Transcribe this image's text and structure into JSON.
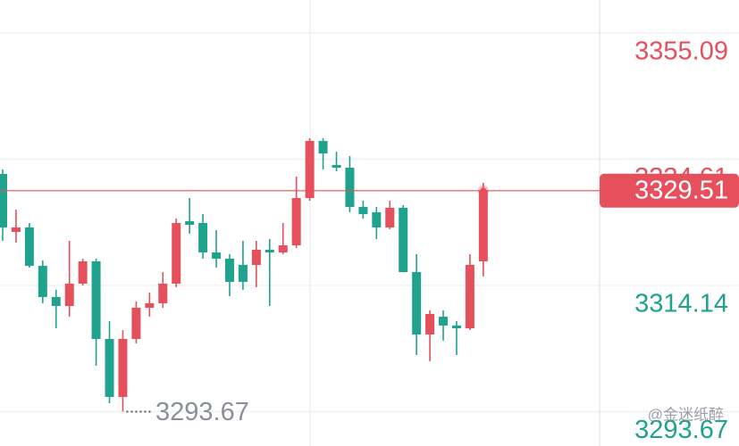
{
  "chart_data": {
    "type": "candlestick",
    "open": [
      3332.23,
      3322.82,
      3323.55,
      3317.32,
      3312.26,
      3310.81,
      3314.43,
      3318.05,
      3305.46,
      3296.05,
      3305.46,
      3310.52,
      3311.25,
      3314.43,
      3324.56,
      3324.27,
      3319.49,
      3318.48,
      3317.47,
      3317.47,
      3319.93,
      3319.49,
      3320.65,
      3328.32,
      3337.58,
      3333.68,
      3333.24,
      3326.88,
      3326.01,
      3323.55,
      3326.73,
      3316.31,
      3306.18,
      3309.07,
      3307.63,
      3307.19,
      3318.05
    ],
    "high": [
      3332.95,
      3326.44,
      3324.27,
      3318.19,
      3313.42,
      3321.38,
      3318.48,
      3318.48,
      3308.35,
      3306.9,
      3311.54,
      3312.98,
      3316.31,
      3324.99,
      3328.32,
      3325.72,
      3323.11,
      3319.21,
      3321.38,
      3321.38,
      3321.67,
      3324.27,
      3331.8,
      3338.02,
      3338.02,
      3335.85,
      3335.12,
      3327.89,
      3326.88,
      3327.89,
      3327.16,
      3319.21,
      3310.09,
      3310.09,
      3308.35,
      3319.21,
      3330.78
    ],
    "low": [
      3321.38,
      3321.09,
      3317.03,
      3311.25,
      3307.19,
      3309.07,
      3314.14,
      3301.12,
      3295.04,
      3293.67,
      3304.73,
      3309.07,
      3310.52,
      3313.85,
      3322.53,
      3318.48,
      3317.03,
      3312.4,
      3313.42,
      3313.85,
      3310.81,
      3319.21,
      3320.22,
      3327.89,
      3332.95,
      3332.66,
      3326.01,
      3324.99,
      3321.67,
      3323.26,
      3316.31,
      3302.85,
      3301.84,
      3305.17,
      3302.85,
      3306.9,
      3315.59
    ],
    "close": [
      3323.55,
      3323.55,
      3317.32,
      3312.26,
      3310.81,
      3314.43,
      3318.05,
      3305.46,
      3296.05,
      3305.46,
      3310.52,
      3311.25,
      3314.43,
      3324.27,
      3323.98,
      3319.49,
      3318.48,
      3314.72,
      3314.72,
      3319.93,
      3319.49,
      3320.65,
      3328.32,
      3337.58,
      3335.56,
      3333.24,
      3326.88,
      3325.72,
      3323.55,
      3326.73,
      3316.31,
      3306.18,
      3309.51,
      3307.63,
      3307.19,
      3317.47,
      3329.51
    ],
    "up_color": "#e5505c",
    "down_color": "#1fa38e",
    "ylim": [
      3288.09,
      3360.45
    ],
    "yticks": [
      3355.09,
      3334.61,
      3314.14,
      3293.67
    ],
    "last_price": 3329.51,
    "min_price": 3293.67,
    "grid": true,
    "watermark": "@金迷纸醉"
  }
}
